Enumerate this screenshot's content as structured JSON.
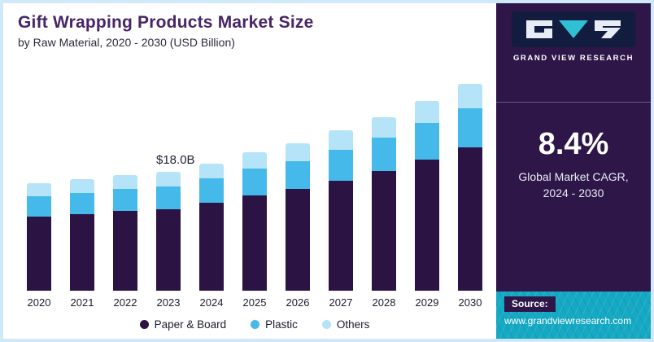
{
  "header": {
    "title": "Gift Wrapping Products Market Size",
    "subtitle": "by Raw Material, 2020 - 2030 (USD Billion)"
  },
  "chart_data": {
    "type": "bar",
    "stacked": true,
    "title": "Gift Wrapping Products Market Size",
    "subtitle": "by Raw Material, 2020 - 2030 (USD Billion)",
    "unit": "USD Billion",
    "categories": [
      "2020",
      "2021",
      "2022",
      "2023",
      "2024",
      "2025",
      "2026",
      "2027",
      "2028",
      "2029",
      "2030"
    ],
    "series": [
      {
        "name": "Paper & Board",
        "color": "#2b1444",
        "values": [
          11.2,
          11.6,
          12.1,
          12.4,
          13.3,
          14.5,
          15.4,
          16.7,
          18.1,
          19.9,
          21.7
        ]
      },
      {
        "name": "Plastic",
        "color": "#45b9e9",
        "values": [
          3.1,
          3.2,
          3.3,
          3.4,
          3.7,
          4.0,
          4.3,
          4.7,
          5.1,
          5.5,
          6.0
        ]
      },
      {
        "name": "Others",
        "color": "#b5e3f7",
        "values": [
          2.0,
          2.1,
          2.1,
          2.2,
          2.3,
          2.5,
          2.7,
          2.9,
          3.1,
          3.4,
          3.7
        ]
      }
    ],
    "totals": [
      16.3,
      16.9,
      17.5,
      18.0,
      19.3,
      21.0,
      22.4,
      24.3,
      26.3,
      28.8,
      31.4
    ],
    "annotation": {
      "category": "2023",
      "text": "$18.0B"
    },
    "ylim": [
      0,
      32
    ],
    "grid": false,
    "legend_position": "bottom"
  },
  "sidebar": {
    "brand": "GRAND VIEW RESEARCH",
    "cagr_value": "8.4%",
    "cagr_label": "Global Market CAGR,\n2024 - 2030",
    "source_label": "Source:",
    "source_url": "www.grandviewresearch.com"
  },
  "colors": {
    "title": "#472566",
    "panel_bg": "#2e1649",
    "logo_bg": "#121c3f",
    "teal_band": "#16a9c4",
    "frame_border": "#cfe9f8"
  }
}
